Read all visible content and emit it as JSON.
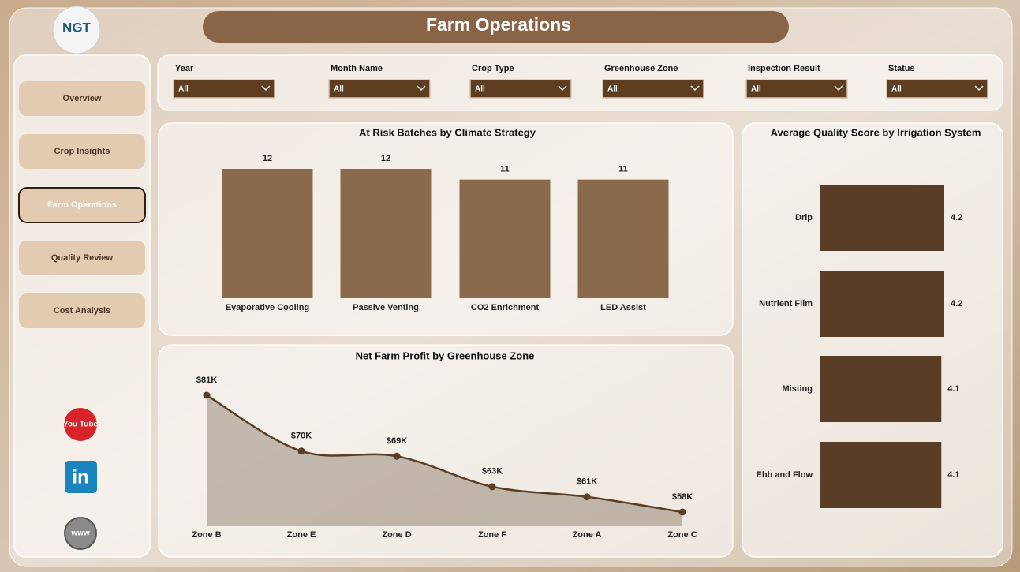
{
  "header": {
    "logo": "NGT",
    "title": "Farm Operations"
  },
  "nav": [
    "Overview",
    "Crop Insights",
    "Farm Operations",
    "Quality Review",
    "Cost Analysis"
  ],
  "active_nav": 2,
  "social": [
    "You Tube",
    "in",
    "www"
  ],
  "filters": [
    {
      "label": "Year",
      "value": "All"
    },
    {
      "label": "Month Name",
      "value": "All"
    },
    {
      "label": "Crop Type",
      "value": "All"
    },
    {
      "label": "Greenhouse Zone",
      "value": "All"
    },
    {
      "label": "Inspection Result",
      "value": "All"
    },
    {
      "label": "Status",
      "value": "All"
    }
  ],
  "chart_data": [
    {
      "type": "bar",
      "title": "At Risk Batches by Climate Strategy",
      "categories": [
        "Evaporative Cooling",
        "Passive Venting",
        "CO2 Enrichment",
        "LED Assist"
      ],
      "values": [
        12,
        12,
        11,
        11
      ],
      "color": "#8b6a4b"
    },
    {
      "type": "hbar",
      "title": "Average Quality Score by Irrigation System",
      "categories": [
        "Drip",
        "Nutrient Film",
        "Misting",
        "Ebb and Flow"
      ],
      "values": [
        4.2,
        4.2,
        4.1,
        4.1
      ],
      "color": "#5a3d26"
    },
    {
      "type": "line",
      "title": "Net Farm Profit by Greenhouse Zone",
      "categories": [
        "Zone B",
        "Zone E",
        "Zone D",
        "Zone F",
        "Zone A",
        "Zone C"
      ],
      "values": [
        81000,
        70000,
        69000,
        63000,
        61000,
        58000
      ],
      "value_labels": [
        "$81K",
        "$70K",
        "$69K",
        "$63K",
        "$61K",
        "$58K"
      ],
      "color": "#5a3d26"
    }
  ]
}
